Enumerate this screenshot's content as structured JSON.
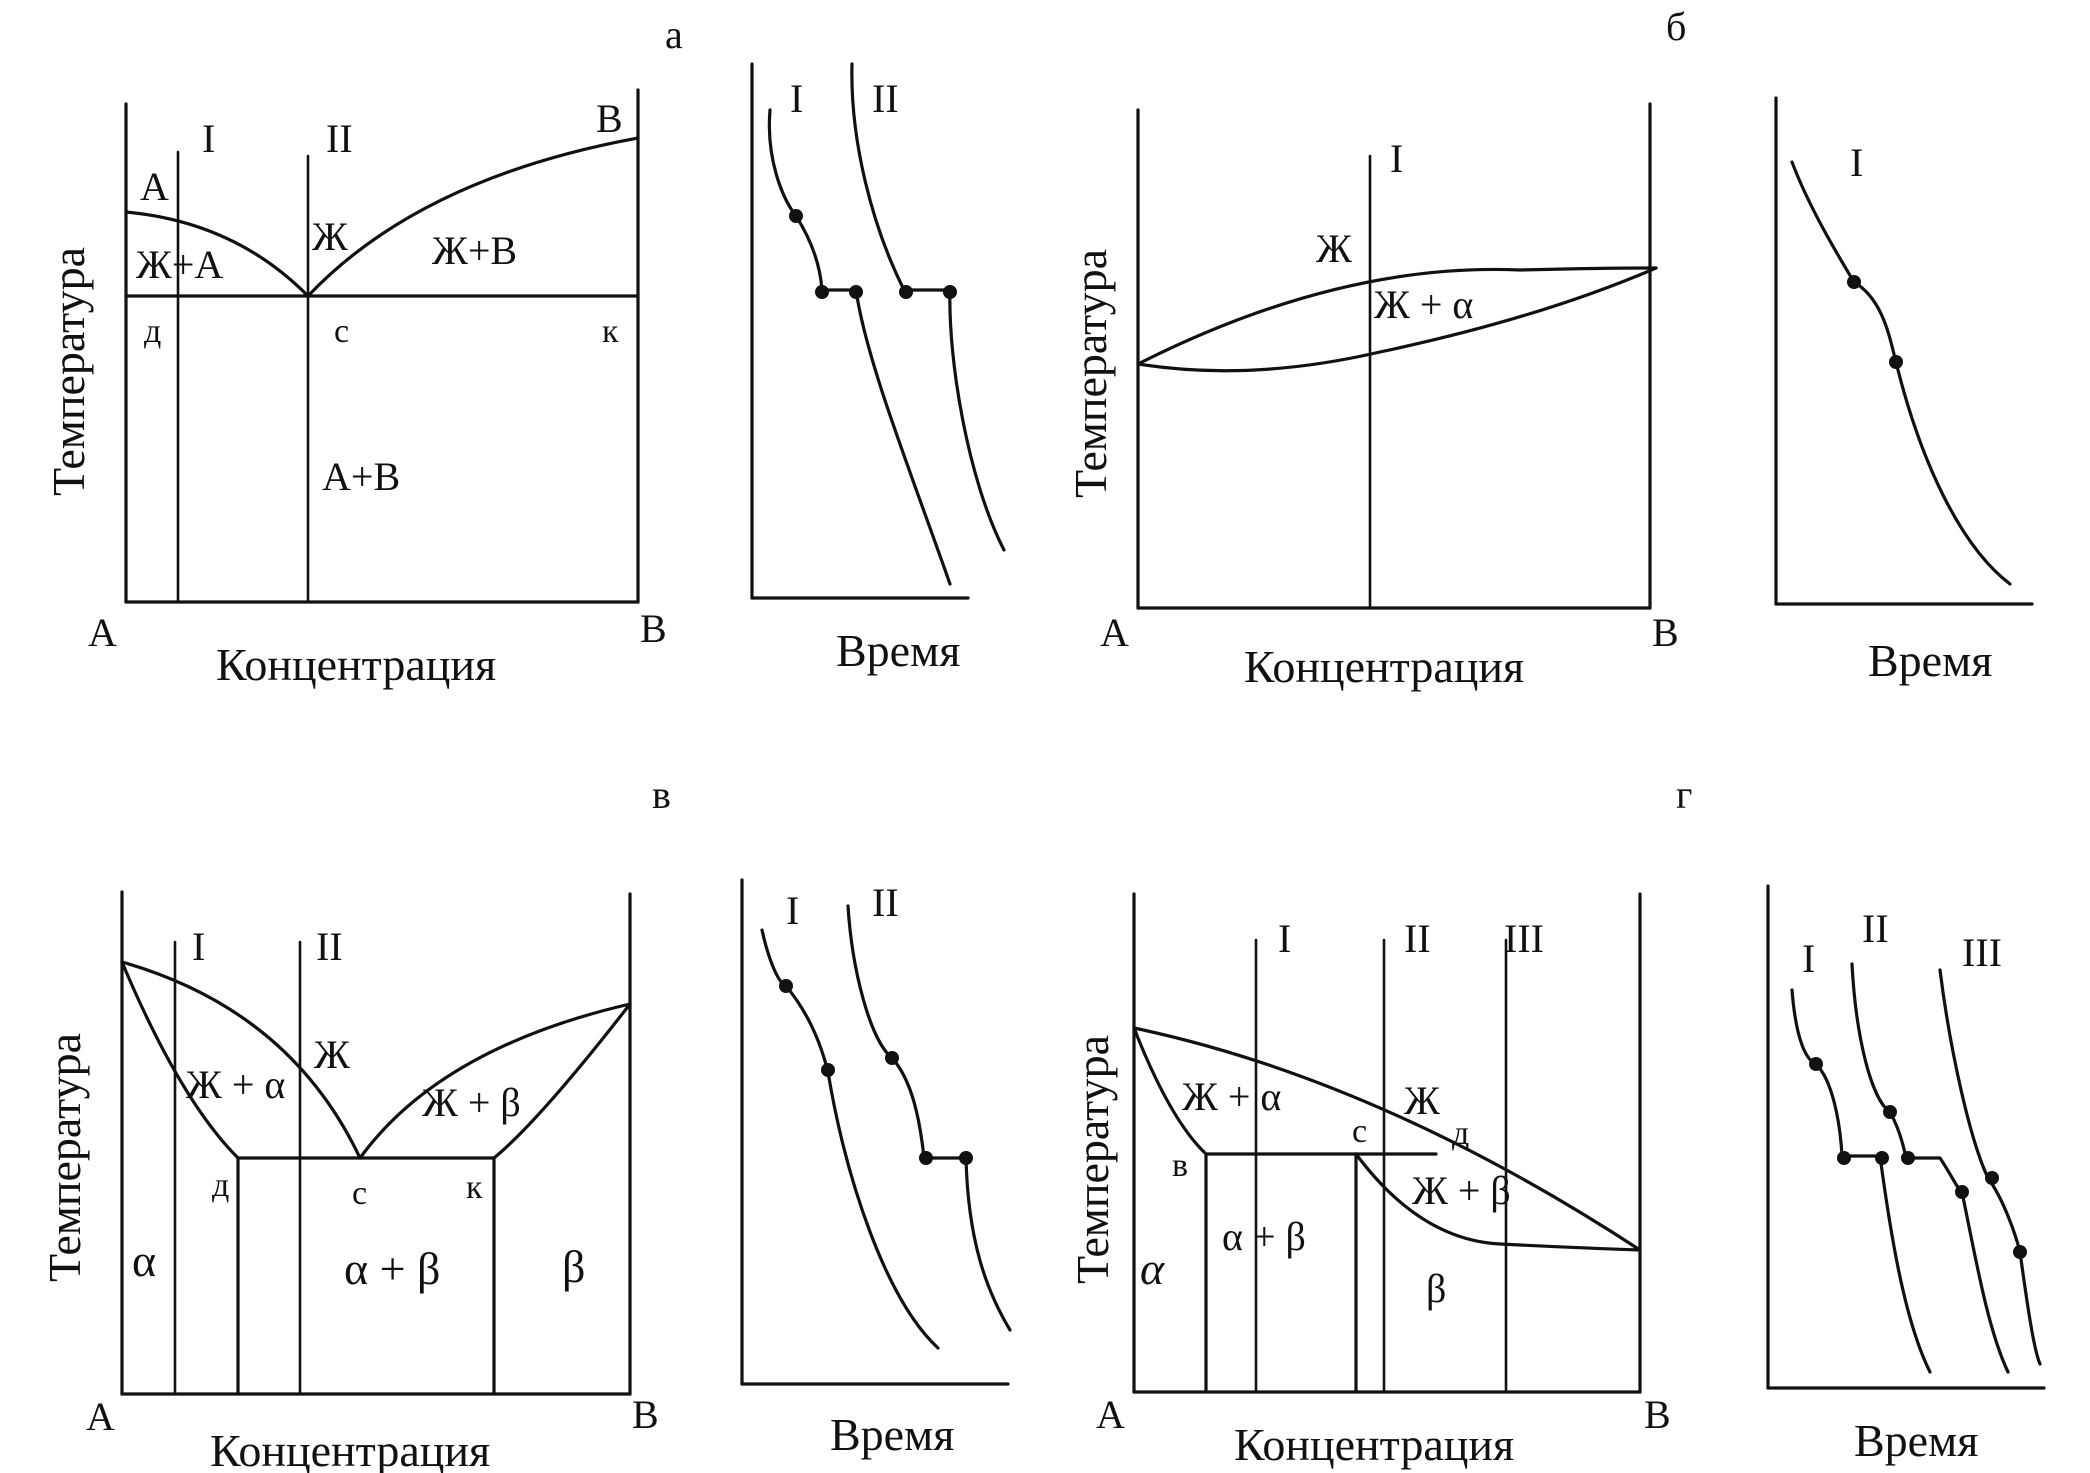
{
  "panels": {
    "a": {
      "letter": "а",
      "corner_left": "A",
      "corner_right": "B",
      "ylabel": "Температура",
      "xlabel": "Концентрация",
      "comp_labels": [
        "I",
        "II"
      ],
      "melt_A": "A",
      "melt_B": "B",
      "regions": [
        "Ж+А",
        "Ж",
        "Ж+В",
        "А+В"
      ],
      "points": [
        "д",
        "с",
        "к"
      ],
      "curve_labels": [
        "I",
        "II"
      ],
      "time_label": "Время"
    },
    "b": {
      "letter": "б",
      "corner_left": "A",
      "corner_right": "B",
      "ylabel": "Температура",
      "xlabel": "Концентрация",
      "comp_labels": [
        "I"
      ],
      "regions": [
        "Ж",
        "Ж + α"
      ],
      "curve_labels": [
        "I"
      ],
      "time_label": "Время"
    },
    "c": {
      "letter": "в",
      "corner_left": "A",
      "corner_right": "B",
      "ylabel": "Температура",
      "xlabel": "Концентрация",
      "comp_labels": [
        "I",
        "II"
      ],
      "regions": [
        "Ж",
        "Ж + α",
        "Ж + β",
        "α",
        "α + β",
        "β"
      ],
      "points": [
        "д",
        "с",
        "к"
      ],
      "curve_labels": [
        "I",
        "II"
      ],
      "time_label": "Время"
    },
    "d": {
      "letter": "г",
      "corner_left": "A",
      "corner_right": "B",
      "ylabel": "Температура",
      "xlabel": "Концентрация",
      "comp_labels": [
        "I",
        "II",
        "III"
      ],
      "regions": [
        "Ж",
        "Ж + α",
        "Ж + β",
        "α + β",
        "β"
      ],
      "alpha_symbol": "α",
      "points": [
        "в",
        "с",
        "д"
      ],
      "curve_labels": [
        "I",
        "II",
        "III"
      ],
      "time_label": "Время"
    }
  }
}
